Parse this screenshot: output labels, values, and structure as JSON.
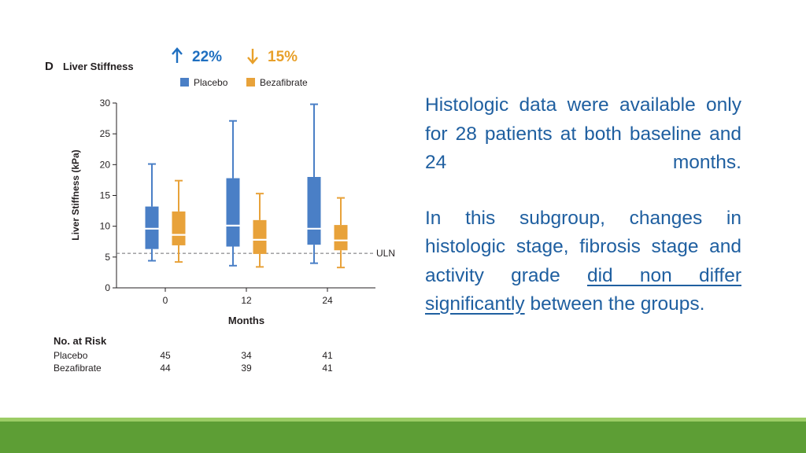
{
  "chart_data": {
    "type": "box",
    "panel_letter": "D",
    "title": "Liver Stiffness",
    "ylabel": "Liver Stiffness (kPa)",
    "xlabel": "Months",
    "ylim": [
      0,
      30
    ],
    "y_ticks": [
      "0",
      "5",
      "10",
      "15",
      "20",
      "25",
      "30"
    ],
    "categories": [
      "0",
      "12",
      "24"
    ],
    "reference_line": {
      "label": "ULN",
      "value": 5.6
    },
    "annotations": [
      {
        "text": "22%",
        "arrow": "up",
        "color": "#1f6fc0"
      },
      {
        "text": "15%",
        "arrow": "down",
        "color": "#e8a02a"
      }
    ],
    "series": [
      {
        "name": "Placebo",
        "color": "#4a7fc6",
        "boxes": [
          {
            "x": "0",
            "min": 4.4,
            "q1": 6.3,
            "median": 9.6,
            "q3": 13.2,
            "max": 20.1
          },
          {
            "x": "12",
            "min": 3.6,
            "q1": 6.7,
            "median": 10.1,
            "q3": 17.8,
            "max": 27.1
          },
          {
            "x": "24",
            "min": 4.0,
            "q1": 7.0,
            "median": 9.6,
            "q3": 18.0,
            "max": 29.8
          }
        ]
      },
      {
        "name": "Bezafibrate",
        "color": "#e8a23a",
        "boxes": [
          {
            "x": "0",
            "min": 4.2,
            "q1": 6.9,
            "median": 8.6,
            "q3": 12.4,
            "max": 17.4
          },
          {
            "x": "12",
            "min": 3.4,
            "q1": 5.5,
            "median": 7.8,
            "q3": 11.0,
            "max": 15.3
          },
          {
            "x": "24",
            "min": 3.3,
            "q1": 6.1,
            "median": 7.7,
            "q3": 10.2,
            "max": 14.6
          }
        ]
      }
    ],
    "at_risk": {
      "title": "No. at Risk",
      "rows": [
        {
          "label": "Placebo",
          "values": [
            "45",
            "34",
            "41"
          ]
        },
        {
          "label": "Bezafibrate",
          "values": [
            "44",
            "39",
            "41"
          ]
        }
      ]
    },
    "grid": false,
    "legend_position": "top"
  },
  "text_panel": {
    "paragraph1": "Histologic data were available only for 28 patients at both baseline and 24 months.",
    "p2_part1": "In this subgroup, changes in histologic stage, fibrosis stage and activity grade ",
    "p2_underlined": "did non differ significantly",
    "p2_part2": " between the groups."
  },
  "colors": {
    "text_blue": "#1f5fa0",
    "footer_green": "#5d9e35",
    "footer_light_green": "#9ccc65"
  }
}
